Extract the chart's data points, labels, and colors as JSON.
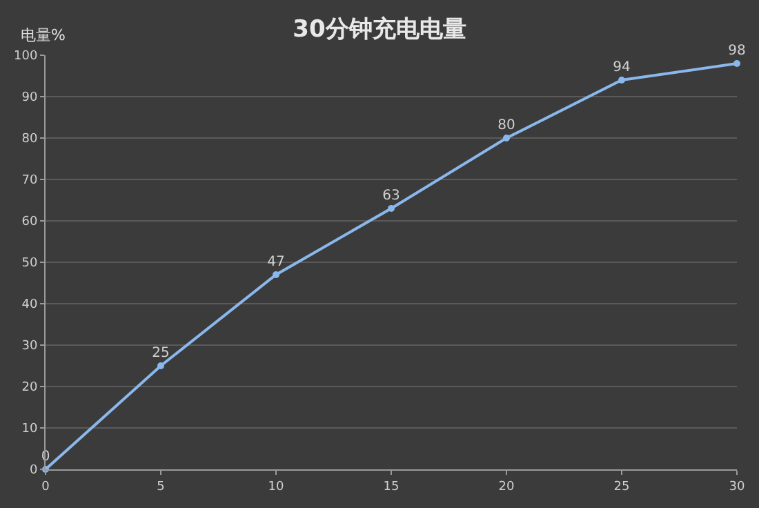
{
  "chart_data": {
    "type": "line",
    "title": "30分钟充电电量",
    "ylabel": "电量%",
    "x": [
      0,
      5,
      10,
      15,
      20,
      25,
      30
    ],
    "series": [
      {
        "color": "#8ab8ec",
        "values": [
          0,
          25,
          47,
          63,
          80,
          94,
          98
        ]
      }
    ],
    "xlim": [
      0,
      30
    ],
    "xticks": [
      0,
      5,
      10,
      15,
      20,
      25,
      30
    ],
    "ylim": [
      0,
      100
    ],
    "yticks": [
      0,
      10,
      20,
      30,
      40,
      50,
      60,
      70,
      80,
      90,
      100
    ],
    "data_labels": true,
    "grid": "y",
    "marker": "circle",
    "line_style": "solid",
    "legend": false
  }
}
